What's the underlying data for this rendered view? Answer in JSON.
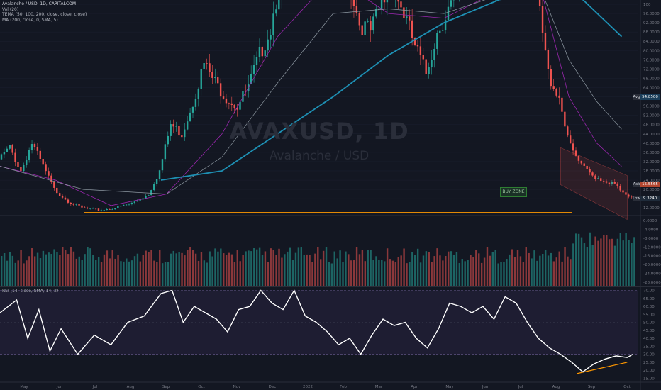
{
  "legend": {
    "symbol": "Avalanche / USD, 1D, CAPITALCOM",
    "vol": "Vol (20)",
    "tema": "TEMA (50, 100, 200, close, close, close)",
    "ma": "MA (200, close, 0, SMA, 5)"
  },
  "watermark": {
    "ticker": "AVAXUSD, 1D",
    "name": "Avalanche / USD"
  },
  "buy_zone_label": "BUY ZONE",
  "price_tags": [
    {
      "key": "Avg",
      "value": "54.8500",
      "color": "#1a3e5a"
    },
    {
      "key": "Ask",
      "value": "15.5565",
      "color": "#b2462f"
    },
    {
      "key": "Low",
      "value": "9.3240",
      "color": "#1f2b3a"
    }
  ],
  "rsi_legend": "RSI (14, close, SMA, 14, 2)",
  "colors": {
    "up": "#26a69a",
    "down": "#ef5350",
    "support": "#ff9800",
    "ma200": "#1e90b4",
    "rsi": "#ffffff"
  },
  "chart_data": [
    {
      "type": "candlestick",
      "title": "AVAXUSD, 1D",
      "x": [
        "May",
        "Jun",
        "Jul",
        "Aug",
        "Sep",
        "Oct",
        "Nov",
        "Dec",
        "2022",
        "Feb",
        "Mar",
        "Apr",
        "May",
        "Jun",
        "Jul",
        "Aug",
        "Sep",
        "Oct"
      ],
      "yticks": [
        12.0,
        16.0,
        20.0,
        24.0,
        28.0,
        32.0,
        36.0,
        40.0,
        44.0,
        48.0,
        52.0,
        56.0,
        60.0,
        64.0,
        68.0,
        72.0,
        76.0,
        80.0,
        84.0,
        88.0,
        92.0,
        96.0,
        100.0
      ],
      "ytick_labels": [
        "12.0000",
        "16.0000",
        "20.0000",
        "24.0000",
        "28.0000",
        "32.0000",
        "36.0000",
        "40.0000",
        "44.0000",
        "48.0000",
        "52.0000",
        "56.0000",
        "60.0000",
        "64.0000",
        "68.0000",
        "72.0000",
        "76.0000",
        "80.0000",
        "84.0000",
        "88.0000",
        "92.0000",
        "96.0000",
        "100"
      ],
      "ylim": [
        9.0,
        100.0
      ],
      "series_points": {
        "price": [
          [
            0,
            33
          ],
          [
            4,
            38
          ],
          [
            8,
            28
          ],
          [
            12,
            40
          ],
          [
            16,
            30
          ],
          [
            20,
            20
          ],
          [
            25,
            15
          ],
          [
            30,
            12
          ],
          [
            36,
            11
          ],
          [
            42,
            12
          ],
          [
            48,
            14
          ],
          [
            54,
            18
          ],
          [
            58,
            28
          ],
          [
            62,
            48
          ],
          [
            66,
            44
          ],
          [
            70,
            58
          ],
          [
            74,
            74
          ],
          [
            78,
            66
          ],
          [
            82,
            60
          ],
          [
            86,
            56
          ],
          [
            90,
            64
          ],
          [
            94,
            78
          ],
          [
            98,
            90
          ],
          [
            102,
            115
          ],
          [
            106,
            142
          ],
          [
            110,
            124
          ],
          [
            114,
            118
          ],
          [
            118,
            132
          ],
          [
            122,
            126
          ],
          [
            126,
            112
          ],
          [
            130,
            92
          ],
          [
            134,
            88
          ],
          [
            138,
            100
          ],
          [
            142,
            108
          ],
          [
            146,
            96
          ],
          [
            150,
            82
          ],
          [
            154,
            70
          ],
          [
            158,
            88
          ],
          [
            162,
            98
          ],
          [
            166,
            104
          ],
          [
            170,
            112
          ],
          [
            174,
            108
          ],
          [
            178,
            102
          ],
          [
            182,
            116
          ],
          [
            186,
            126
          ],
          [
            190,
            110
          ],
          [
            194,
            104
          ],
          [
            198,
            70
          ],
          [
            202,
            60
          ],
          [
            206,
            38
          ],
          [
            210,
            30
          ],
          [
            214,
            26
          ],
          [
            218,
            24
          ],
          [
            222,
            22
          ],
          [
            226,
            17
          ],
          [
            228,
            16
          ]
        ],
        "ema_fast": [
          [
            0,
            30
          ],
          [
            20,
            24
          ],
          [
            40,
            13
          ],
          [
            60,
            18
          ],
          [
            80,
            44
          ],
          [
            100,
            86
          ],
          [
            120,
            112
          ],
          [
            140,
            96
          ],
          [
            160,
            94
          ],
          [
            180,
            106
          ],
          [
            195,
            106
          ],
          [
            205,
            60
          ],
          [
            215,
            40
          ],
          [
            224,
            30
          ]
        ],
        "ema_mid": [
          [
            0,
            30
          ],
          [
            30,
            20
          ],
          [
            60,
            18
          ],
          [
            80,
            34
          ],
          [
            100,
            66
          ],
          [
            120,
            96
          ],
          [
            140,
            98
          ],
          [
            160,
            96
          ],
          [
            180,
            104
          ],
          [
            195,
            106
          ],
          [
            205,
            76
          ],
          [
            215,
            58
          ],
          [
            224,
            46
          ]
        ],
        "ma200": [
          [
            58,
            24
          ],
          [
            80,
            28
          ],
          [
            100,
            44
          ],
          [
            120,
            60
          ],
          [
            140,
            78
          ],
          [
            160,
            92
          ],
          [
            180,
            102
          ],
          [
            200,
            105
          ],
          [
            210,
            102
          ],
          [
            224,
            86
          ]
        ]
      },
      "support_level": 10.0,
      "buy_zone": "BUY ZONE"
    },
    {
      "type": "bar",
      "title": "Vol (20)",
      "yticks": [
        0.0,
        -4.0,
        -8.0,
        -12.0,
        -16.0,
        -20.0,
        -24.0,
        -28.0
      ],
      "ytick_labels": [
        "0.0000",
        "-4.0000",
        "-8.0000",
        "-12.0000",
        "-16.0000",
        "-20.0000",
        "-24.0000",
        "-28.0000"
      ],
      "ylim": [
        -30.0,
        2.0
      ]
    },
    {
      "type": "line",
      "title": "RSI (14, close, SMA, 14, 2)",
      "yticks": [
        15.0,
        20.0,
        25.0,
        30.0,
        35.0,
        40.0,
        45.0,
        50.0,
        55.0,
        60.0,
        65.0,
        70.0
      ],
      "ytick_labels": [
        "15.00",
        "20.00",
        "25.00",
        "30.00",
        "35.00",
        "40.00",
        "45.00",
        "50.00",
        "55.00",
        "60.00",
        "65.00",
        "70.00"
      ],
      "ylim": [
        13.0,
        72.0
      ],
      "band": [
        30,
        70
      ],
      "series_points": {
        "rsi": [
          [
            0,
            56
          ],
          [
            6,
            64
          ],
          [
            10,
            40
          ],
          [
            14,
            58
          ],
          [
            18,
            32
          ],
          [
            22,
            46
          ],
          [
            28,
            30
          ],
          [
            34,
            42
          ],
          [
            40,
            36
          ],
          [
            46,
            50
          ],
          [
            52,
            54
          ],
          [
            58,
            68
          ],
          [
            62,
            70
          ],
          [
            66,
            50
          ],
          [
            70,
            60
          ],
          [
            74,
            56
          ],
          [
            78,
            52
          ],
          [
            82,
            44
          ],
          [
            86,
            58
          ],
          [
            90,
            60
          ],
          [
            94,
            70
          ],
          [
            98,
            62
          ],
          [
            102,
            58
          ],
          [
            106,
            70
          ],
          [
            110,
            54
          ],
          [
            114,
            50
          ],
          [
            118,
            44
          ],
          [
            122,
            36
          ],
          [
            126,
            40
          ],
          [
            130,
            30
          ],
          [
            134,
            42
          ],
          [
            138,
            52
          ],
          [
            142,
            48
          ],
          [
            146,
            50
          ],
          [
            150,
            40
          ],
          [
            154,
            34
          ],
          [
            158,
            46
          ],
          [
            162,
            62
          ],
          [
            166,
            60
          ],
          [
            170,
            56
          ],
          [
            174,
            60
          ],
          [
            178,
            52
          ],
          [
            182,
            66
          ],
          [
            186,
            62
          ],
          [
            190,
            50
          ],
          [
            194,
            40
          ],
          [
            198,
            34
          ],
          [
            202,
            30
          ],
          [
            206,
            25
          ],
          [
            210,
            19
          ],
          [
            214,
            24
          ],
          [
            218,
            27
          ],
          [
            222,
            29
          ],
          [
            226,
            28
          ],
          [
            228,
            30
          ]
        ]
      }
    }
  ]
}
